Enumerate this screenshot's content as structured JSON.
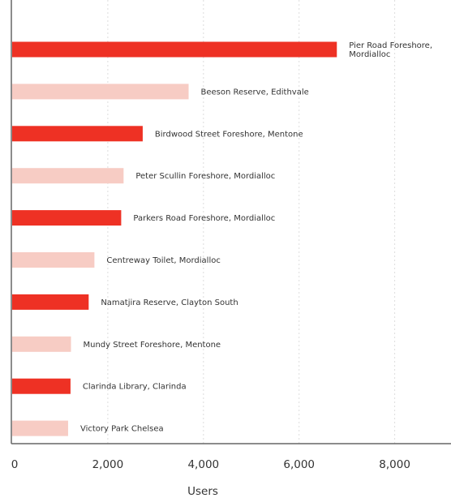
{
  "chart_data": {
    "type": "bar",
    "orientation": "horizontal",
    "title": "",
    "xlabel": "Users",
    "ylabel": "",
    "xlim": [
      0,
      9000
    ],
    "x_ticks": [
      0,
      2000,
      4000,
      6000,
      8000
    ],
    "x_tick_labels": [
      "0",
      "2,000",
      "4,000",
      "6,000",
      "8,000"
    ],
    "grid": "vertical dashed",
    "legend": "none",
    "colors": {
      "primary": "#ee3124",
      "secondary": "#f7ccc4",
      "grid": "#dddddd",
      "axis": "#666666"
    },
    "categories": [
      "Pier Road Foreshore, Mordialloc",
      "Beeson Reserve, Edithvale",
      "Birdwood Street Foreshore, Mentone",
      "Peter Scullin Foreshore, Mordialloc",
      "Parkers Road Foreshore, Mordialloc",
      "Centreway Toilet, Mordialloc",
      "Namatjira Reserve, Clayton South",
      "Mundy Street Foreshore, Mentone",
      "Clarinda Library, Clarinda",
      "Victory Park Chelsea"
    ],
    "label_lines": [
      [
        "Pier Road Foreshore,",
        "Mordialloc"
      ],
      [
        "Beeson Reserve, Edithvale"
      ],
      [
        "Birdwood Street Foreshore, Mentone"
      ],
      [
        "Peter Scullin Foreshore, Mordialloc"
      ],
      [
        "Parkers Road Foreshore, Mordialloc"
      ],
      [
        "Centreway Toilet, Mordialloc"
      ],
      [
        "Namatjira Reserve, Clayton South"
      ],
      [
        "Mundy Street Foreshore, Mentone"
      ],
      [
        "Clarinda Library, Clarinda"
      ],
      [
        "Victory Park Chelsea"
      ]
    ],
    "values": [
      6790,
      3690,
      2730,
      2330,
      2280,
      1720,
      1600,
      1230,
      1220,
      1170
    ]
  }
}
